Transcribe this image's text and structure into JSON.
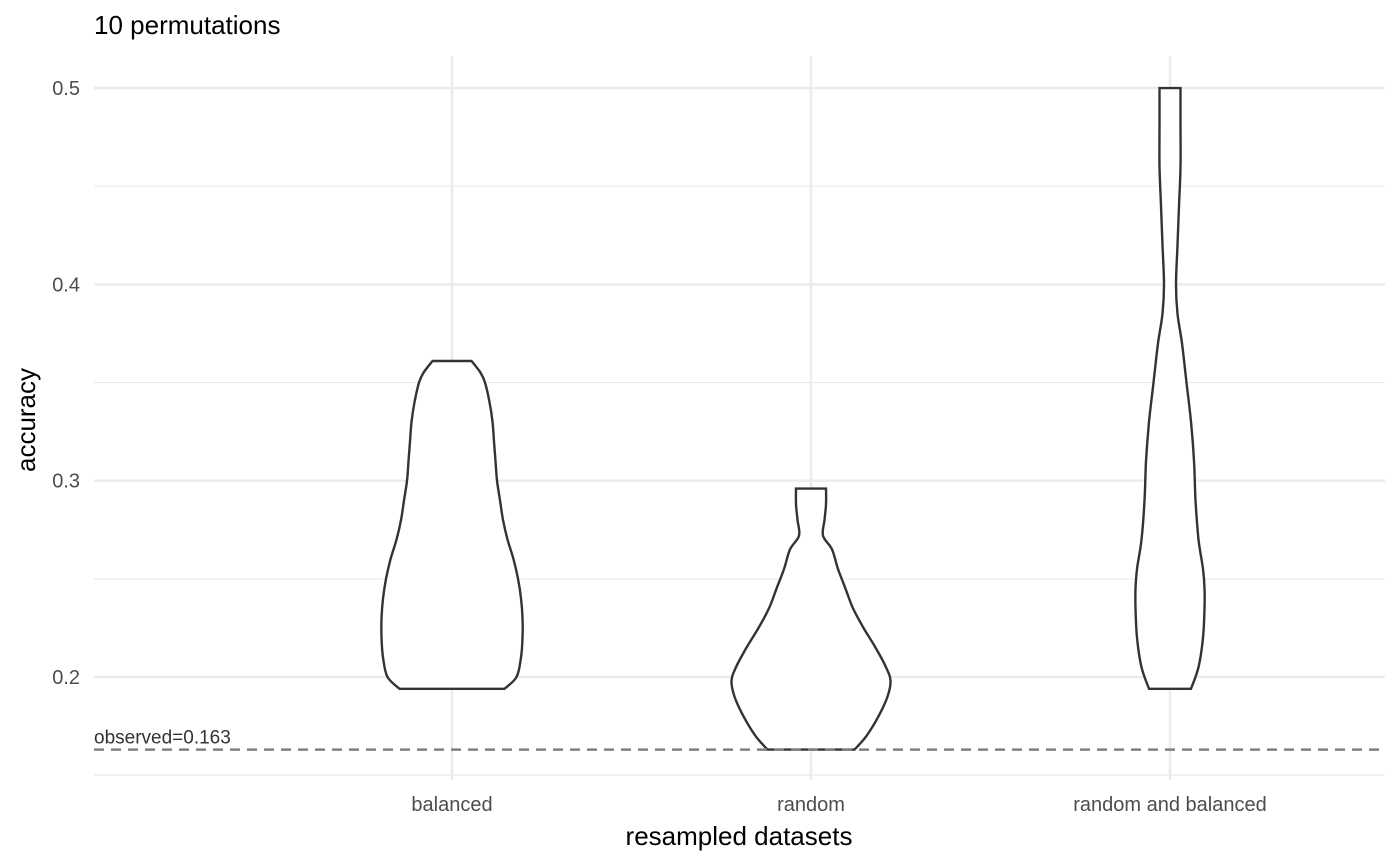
{
  "chart_data": {
    "type": "violin",
    "title": "10 permutations",
    "xlabel": "resampled datasets",
    "ylabel": "accuracy",
    "categories": [
      "balanced",
      "random",
      "random and balanced"
    ],
    "ylim": [
      0.15,
      0.515
    ],
    "yticks": [
      0.2,
      0.3,
      0.4,
      0.5
    ],
    "yticks_minor": [
      0.15,
      0.25,
      0.35,
      0.45
    ],
    "ytick_labels": [
      "0.2",
      "0.3",
      "0.4",
      "0.5"
    ],
    "grid": true,
    "reference_line": {
      "y": 0.163,
      "style": "dashed",
      "label": "observed=0.163"
    },
    "violins": [
      {
        "category": "balanced",
        "min": 0.194,
        "max": 0.361,
        "density_profile": [
          [
            0.194,
            0.35
          ],
          [
            0.2,
            0.43
          ],
          [
            0.21,
            0.46
          ],
          [
            0.22,
            0.47
          ],
          [
            0.23,
            0.47
          ],
          [
            0.24,
            0.46
          ],
          [
            0.25,
            0.44
          ],
          [
            0.26,
            0.41
          ],
          [
            0.27,
            0.37
          ],
          [
            0.28,
            0.34
          ],
          [
            0.29,
            0.32
          ],
          [
            0.3,
            0.3
          ],
          [
            0.31,
            0.29
          ],
          [
            0.32,
            0.28
          ],
          [
            0.33,
            0.27
          ],
          [
            0.34,
            0.25
          ],
          [
            0.35,
            0.22
          ],
          [
            0.355,
            0.19
          ],
          [
            0.361,
            0.13
          ]
        ]
      },
      {
        "category": "random",
        "min": 0.163,
        "max": 0.296,
        "density_profile": [
          [
            0.163,
            0.29
          ],
          [
            0.17,
            0.37
          ],
          [
            0.18,
            0.45
          ],
          [
            0.19,
            0.51
          ],
          [
            0.198,
            0.53
          ],
          [
            0.205,
            0.5
          ],
          [
            0.215,
            0.43
          ],
          [
            0.225,
            0.35
          ],
          [
            0.235,
            0.28
          ],
          [
            0.245,
            0.23
          ],
          [
            0.255,
            0.18
          ],
          [
            0.265,
            0.14
          ],
          [
            0.272,
            0.08
          ],
          [
            0.28,
            0.09
          ],
          [
            0.288,
            0.1
          ],
          [
            0.296,
            0.1
          ]
        ]
      },
      {
        "category": "random and balanced",
        "min": 0.194,
        "max": 0.5,
        "density_profile": [
          [
            0.194,
            0.14
          ],
          [
            0.205,
            0.19
          ],
          [
            0.22,
            0.22
          ],
          [
            0.235,
            0.23
          ],
          [
            0.245,
            0.23
          ],
          [
            0.255,
            0.22
          ],
          [
            0.27,
            0.19
          ],
          [
            0.29,
            0.17
          ],
          [
            0.31,
            0.16
          ],
          [
            0.33,
            0.14
          ],
          [
            0.35,
            0.11
          ],
          [
            0.37,
            0.08
          ],
          [
            0.385,
            0.05
          ],
          [
            0.4,
            0.04
          ],
          [
            0.42,
            0.05
          ],
          [
            0.44,
            0.06
          ],
          [
            0.46,
            0.07
          ],
          [
            0.48,
            0.07
          ],
          [
            0.5,
            0.07
          ]
        ]
      }
    ]
  }
}
